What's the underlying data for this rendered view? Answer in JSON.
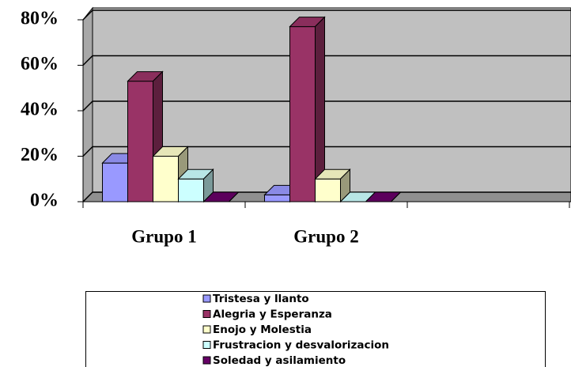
{
  "chart_data": {
    "type": "bar3d",
    "categories": [
      "Grupo 1",
      "Grupo 2",
      null
    ],
    "series": [
      {
        "name": "Tristesa y llanto",
        "color": "#9999ff",
        "values": [
          17,
          3,
          null
        ]
      },
      {
        "name": "Alegria y Esperanza",
        "color": "#993366",
        "values": [
          53,
          77,
          null
        ]
      },
      {
        "name": "Enojo y Molestia",
        "color": "#ffffcc",
        "values": [
          20,
          10,
          null
        ]
      },
      {
        "name": "Frustracion y desvalorizacion",
        "color": "#ccffff",
        "values": [
          10,
          0,
          null
        ]
      },
      {
        "name": "Soledad y asilamiento",
        "color": "#660066",
        "values": [
          0,
          0,
          null
        ]
      }
    ],
    "ylim": [
      0,
      80
    ],
    "yticks": [
      {
        "value": 0,
        "label": "0%"
      },
      {
        "value": 20,
        "label": "20%"
      },
      {
        "value": 40,
        "label": "40%"
      },
      {
        "value": 60,
        "label": "60%"
      },
      {
        "value": 80,
        "label": "80%"
      }
    ],
    "grid": true,
    "legend": "bottom"
  }
}
